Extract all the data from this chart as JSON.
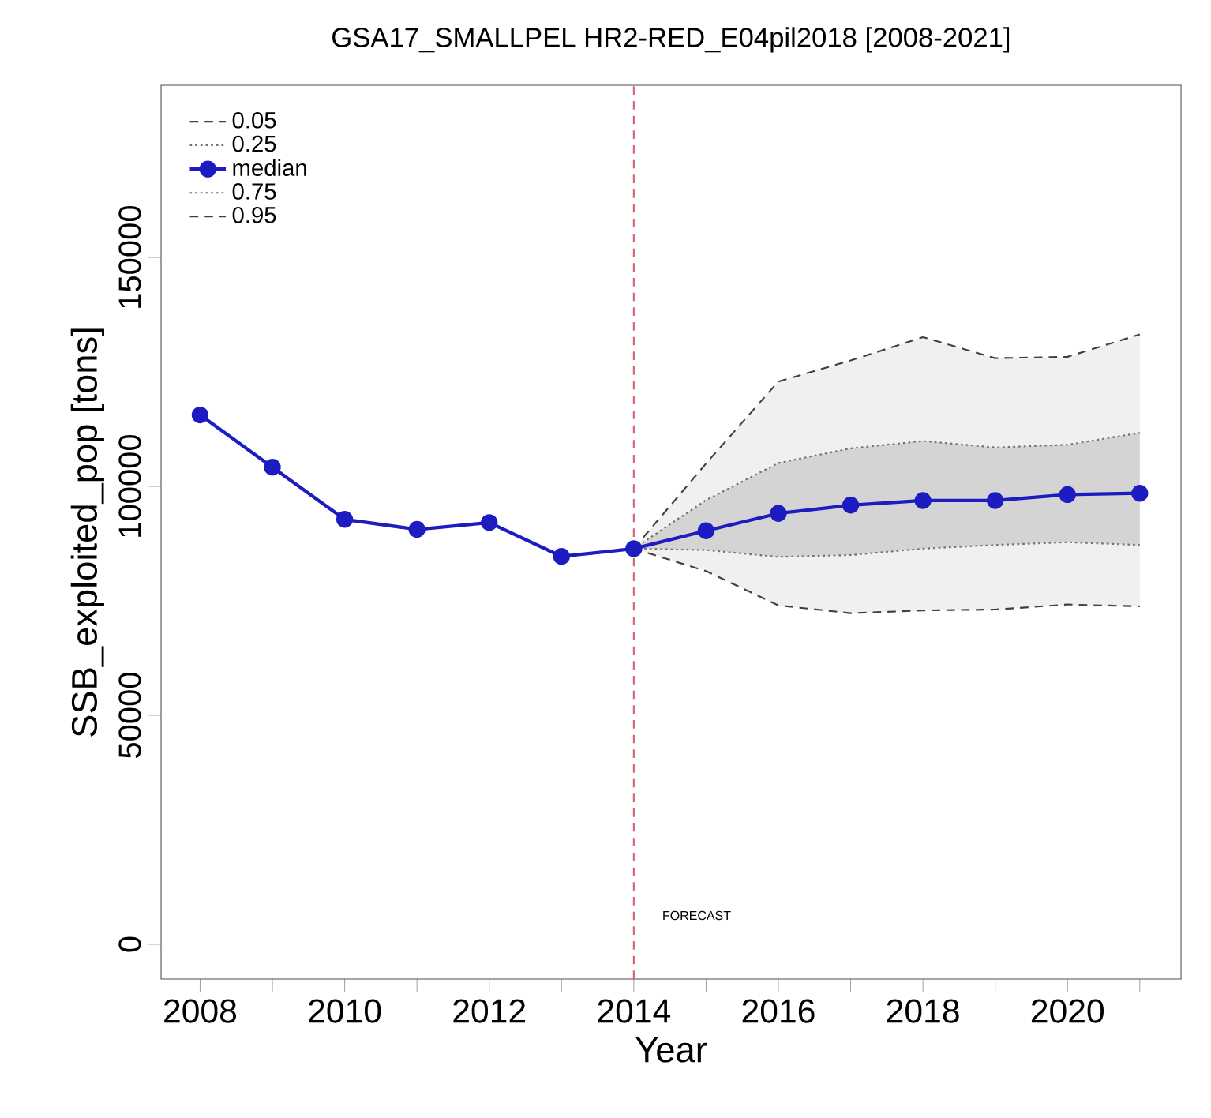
{
  "chart_data": {
    "type": "line",
    "title": "GSA17_SMALLPEL HR2-RED_E04pil2018 [2008-2021]",
    "xlabel": "Year",
    "ylabel": "SSB_exploited_pop [tons]",
    "xlim": [
      2007.46,
      2021.57
    ],
    "ylim": [
      -7600,
      187600
    ],
    "xticks": [
      2008,
      {
        "value": 2009,
        "label": null
      },
      2010,
      {
        "value": 2011,
        "label": null
      },
      2012,
      {
        "value": 2013,
        "label": null
      },
      2014,
      {
        "value": 2015,
        "label": null
      },
      2016,
      {
        "value": 2017,
        "label": null
      },
      2018,
      {
        "value": 2019,
        "label": null
      },
      2020,
      {
        "value": 2021,
        "label": null
      }
    ],
    "yticks": [
      0,
      50000,
      100000,
      150000
    ],
    "grid": false,
    "legend": "top left",
    "series": [
      {
        "name": "0.05",
        "color": "#404040",
        "line_style": "dashed",
        "marker": "none",
        "x": [
          2014,
          2015,
          2016,
          2017,
          2018,
          2019,
          2020,
          2021
        ],
        "values": [
          86400,
          81500,
          74000,
          72300,
          72900,
          73100,
          74200,
          73800
        ]
      },
      {
        "name": "0.25",
        "color": "#707070",
        "line_style": "dotted",
        "marker": "none",
        "x": [
          2014,
          2015,
          2016,
          2017,
          2018,
          2019,
          2020,
          2021
        ],
        "values": [
          86400,
          86100,
          84600,
          85000,
          86400,
          87200,
          87800,
          87200
        ]
      },
      {
        "name": "median",
        "color": "#1c1cc0",
        "line_style": "solid",
        "marker": "circle",
        "x": [
          2008,
          2009,
          2010,
          2011,
          2012,
          2013,
          2014,
          2015,
          2016,
          2017,
          2018,
          2019,
          2020,
          2021
        ],
        "values": [
          115600,
          104200,
          92800,
          90600,
          92100,
          84700,
          86400,
          90300,
          94100,
          95900,
          96900,
          96900,
          98200,
          98500
        ]
      },
      {
        "name": "0.75",
        "color": "#707070",
        "line_style": "dotted",
        "marker": "none",
        "x": [
          2014,
          2015,
          2016,
          2017,
          2018,
          2019,
          2020,
          2021
        ],
        "values": [
          86400,
          97000,
          105100,
          108300,
          109900,
          108500,
          109100,
          111700
        ],
        "lower": [
          86400,
          86100,
          84600,
          85000,
          86400,
          87200,
          87800,
          87200
        ],
        "upper": [
          86400,
          97000,
          105100,
          108300,
          109900,
          108500,
          109100,
          111700
        ]
      },
      {
        "name": "0.95",
        "color": "#404040",
        "line_style": "dashed",
        "marker": "none",
        "x": [
          2014,
          2015,
          2016,
          2017,
          2018,
          2019,
          2020,
          2021
        ],
        "values": [
          86400,
          105000,
          122900,
          127500,
          132600,
          128000,
          128300,
          133200
        ],
        "lower": [
          86400,
          81500,
          74000,
          72300,
          72900,
          73100,
          74200,
          73800
        ],
        "upper": [
          86400,
          105000,
          122900,
          127500,
          132600,
          128000,
          128300,
          133200
        ]
      }
    ],
    "ref_lines": [
      {
        "axis": "x",
        "value": 2014,
        "color": "#e06070",
        "line_style": "dashed"
      }
    ],
    "annotations": [
      "FORECAST"
    ]
  }
}
